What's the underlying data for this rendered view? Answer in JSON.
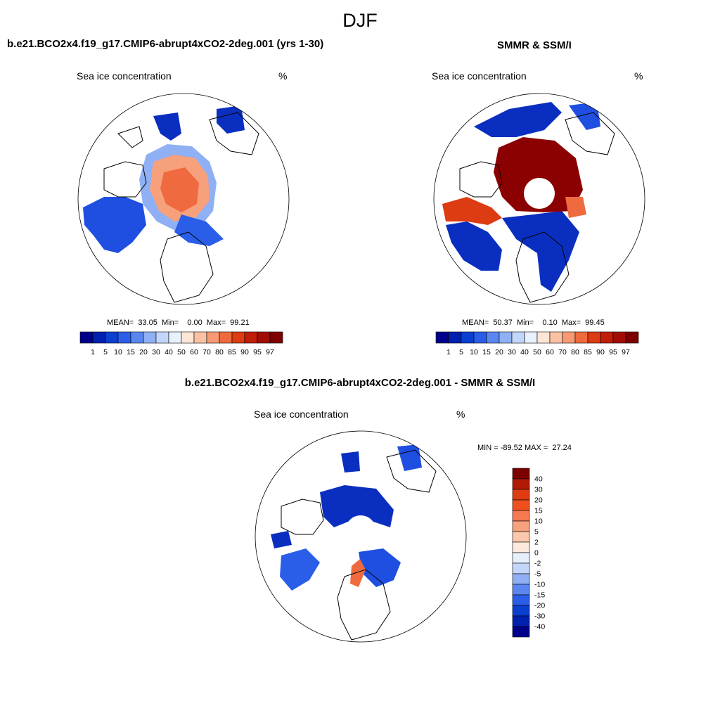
{
  "figure": {
    "season": "DJF",
    "panels": [
      {
        "title": "b.e21.BCO2x4.f19_g17.CMIP6-abrupt4xCO2-2deg.001 (yrs 1-30)",
        "variable": "Sea ice concentration",
        "units": "%",
        "stats": "MEAN=  33.05  Min=    0.00  Max=  99.21"
      },
      {
        "title": "SMMR & SSM/I",
        "variable": "Sea ice concentration",
        "units": "%",
        "stats": "MEAN=  50.37  Min=    0.10  Max=  99.45"
      },
      {
        "title": "b.e21.BCO2x4.f19_g17.CMIP6-abrupt4xCO2-2deg.001 - SMMR & SSM/I",
        "variable": "Sea ice concentration",
        "units": "%",
        "stats": "MIN = -89.52 MAX =  27.24"
      }
    ],
    "colorbar_concentration": {
      "labels": [
        "1",
        "5",
        "10",
        "15",
        "20",
        "30",
        "40",
        "50",
        "60",
        "70",
        "80",
        "85",
        "90",
        "95",
        "97"
      ],
      "colors": [
        "#00008b",
        "#0020b0",
        "#0a3fd0",
        "#2a5ee8",
        "#5a86f0",
        "#8fb0f5",
        "#c2d6fa",
        "#e9f1fd",
        "#fde6d6",
        "#fbc1a3",
        "#f79a73",
        "#ef6a3e",
        "#dd3b12",
        "#c11d08",
        "#a10d04",
        "#7d0000"
      ]
    },
    "colorbar_difference": {
      "labels": [
        "40",
        "30",
        "20",
        "15",
        "10",
        "5",
        "2",
        "0",
        "-2",
        "-5",
        "-10",
        "-15",
        "-20",
        "-30",
        "-40"
      ],
      "colors": [
        "#7d0000",
        "#b31a05",
        "#dd3b12",
        "#f0501e",
        "#f57a52",
        "#f7a07c",
        "#fbc8ab",
        "#fde9dc",
        "#e6effc",
        "#c2d6fa",
        "#8fb0f5",
        "#5a86f0",
        "#2a5ee8",
        "#0a3fd0",
        "#0020b0",
        "#00008b"
      ]
    }
  }
}
